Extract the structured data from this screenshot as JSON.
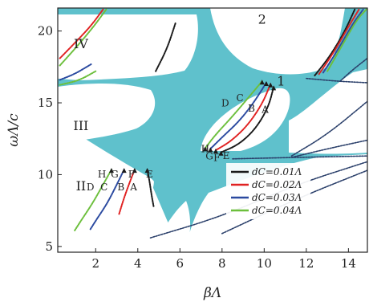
{
  "chart_data": {
    "type": "line",
    "title": "",
    "xlabel": "βΛ",
    "ylabel": "ωΛ/c",
    "xlim": [
      0.2,
      14.9
    ],
    "ylim": [
      4.6,
      21.6
    ],
    "xticks": [
      2,
      4,
      6,
      8,
      10,
      12,
      14
    ],
    "yticks": [
      5,
      10,
      15,
      20
    ],
    "colors": {
      "band": "#5fc1cc",
      "d1": "#1a1a1a",
      "d2": "#e02222",
      "d3": "#2b4aa0",
      "d4": "#6cbf3c",
      "light_line": "#2a3f6a"
    },
    "legend": {
      "placement": "lower-right",
      "entries": [
        {
          "text": "dC=0.01Λ",
          "color": "d1"
        },
        {
          "text": "dC=0.02Λ",
          "color": "d2"
        },
        {
          "text": "dC=0.03Λ",
          "color": "d3"
        },
        {
          "text": "dC=0.04Λ",
          "color": "d4"
        }
      ]
    },
    "region_labels": [
      {
        "text": "IV",
        "x": 1.3,
        "y": 18.8
      },
      {
        "text": "III",
        "x": 1.3,
        "y": 13.1
      },
      {
        "text": "II",
        "x": 1.3,
        "y": 8.9
      },
      {
        "text": "2",
        "x": 9.9,
        "y": 20.5
      },
      {
        "text": "1",
        "x": 10.8,
        "y": 16.2
      }
    ],
    "point_labels": [
      {
        "text": "H",
        "x": 2.3,
        "y": 9.8
      },
      {
        "text": "G",
        "x": 2.9,
        "y": 9.8
      },
      {
        "text": "F",
        "x": 3.7,
        "y": 9.8
      },
      {
        "text": "E",
        "x": 4.55,
        "y": 9.8
      },
      {
        "text": "D",
        "x": 1.75,
        "y": 8.9
      },
      {
        "text": "C",
        "x": 2.4,
        "y": 8.9
      },
      {
        "text": "B",
        "x": 3.2,
        "y": 8.9
      },
      {
        "text": "A",
        "x": 3.8,
        "y": 8.9
      },
      {
        "text": "D",
        "x": 8.15,
        "y": 14.75
      },
      {
        "text": "C",
        "x": 8.85,
        "y": 15.1
      },
      {
        "text": "B",
        "x": 9.4,
        "y": 14.4
      },
      {
        "text": "A",
        "x": 10.05,
        "y": 14.3
      },
      {
        "text": "H",
        "x": 7.2,
        "y": 11.55
      },
      {
        "text": "G",
        "x": 7.4,
        "y": 11.05
      },
      {
        "text": "F",
        "x": 7.75,
        "y": 10.95
      },
      {
        "text": "E",
        "x": 8.2,
        "y": 11.1
      }
    ],
    "series": [
      {
        "color": "d1",
        "points": [
          [
            4.45,
            10.35
          ],
          [
            4.55,
            9.6
          ],
          [
            4.65,
            8.6
          ],
          [
            4.75,
            7.8
          ]
        ]
      },
      {
        "color": "d2",
        "points": [
          [
            3.85,
            10.35
          ],
          [
            3.65,
            9.6
          ],
          [
            3.35,
            8.4
          ],
          [
            3.1,
            7.2
          ]
        ]
      },
      {
        "color": "d3",
        "points": [
          [
            3.35,
            10.35
          ],
          [
            3.0,
            9.3
          ],
          [
            2.55,
            8.0
          ],
          [
            2.05,
            6.9
          ],
          [
            1.75,
            6.2
          ]
        ]
      },
      {
        "color": "d4",
        "points": [
          [
            2.75,
            10.35
          ],
          [
            2.35,
            9.3
          ],
          [
            1.85,
            8.0
          ],
          [
            1.35,
            6.9
          ],
          [
            1.0,
            6.1
          ]
        ]
      },
      {
        "color": "d1",
        "points": [
          [
            10.45,
            16.1
          ],
          [
            10.2,
            14.7
          ],
          [
            9.6,
            13.2
          ],
          [
            8.8,
            12.1
          ],
          [
            7.95,
            11.55
          ]
        ]
      },
      {
        "color": "d2",
        "points": [
          [
            10.3,
            16.3
          ],
          [
            9.9,
            14.9
          ],
          [
            9.2,
            13.4
          ],
          [
            8.4,
            12.3
          ],
          [
            7.7,
            11.7
          ]
        ]
      },
      {
        "color": "d3",
        "points": [
          [
            10.1,
            16.4
          ],
          [
            9.5,
            15.0
          ],
          [
            8.8,
            13.7
          ],
          [
            8.0,
            12.6
          ],
          [
            7.45,
            11.8
          ]
        ]
      },
      {
        "color": "d4",
        "points": [
          [
            9.9,
            16.5
          ],
          [
            9.1,
            15.1
          ],
          [
            8.4,
            13.9
          ],
          [
            7.7,
            12.8
          ],
          [
            7.2,
            11.85
          ]
        ]
      },
      {
        "color": "d1",
        "points": [
          [
            4.85,
            17.2
          ],
          [
            5.4,
            18.8
          ],
          [
            5.8,
            20.6
          ]
        ]
      },
      {
        "color": "d2",
        "points": [
          [
            0.3,
            18.1
          ],
          [
            1.1,
            19.3
          ],
          [
            1.8,
            20.4
          ],
          [
            2.35,
            21.5
          ]
        ]
      },
      {
        "color": "d4",
        "points": [
          [
            0.3,
            17.6
          ],
          [
            1.1,
            18.9
          ],
          [
            1.9,
            20.3
          ],
          [
            2.5,
            21.5
          ]
        ]
      },
      {
        "color": "d1",
        "points": [
          [
            12.4,
            16.9
          ],
          [
            13.1,
            18.2
          ],
          [
            13.8,
            19.9
          ],
          [
            14.3,
            21.5
          ]
        ]
      },
      {
        "color": "d2",
        "points": [
          [
            12.6,
            17.0
          ],
          [
            13.3,
            18.5
          ],
          [
            14.0,
            20.3
          ],
          [
            14.5,
            21.5
          ]
        ]
      },
      {
        "color": "d3",
        "points": [
          [
            12.8,
            17.1
          ],
          [
            13.5,
            18.7
          ],
          [
            14.2,
            20.5
          ],
          [
            14.7,
            21.5
          ]
        ]
      },
      {
        "color": "d4",
        "points": [
          [
            13.0,
            17.2
          ],
          [
            13.7,
            19.0
          ],
          [
            14.4,
            20.8
          ],
          [
            14.85,
            21.5
          ]
        ]
      },
      {
        "color": "d3",
        "points": [
          [
            0.3,
            16.6
          ],
          [
            1.0,
            17.0
          ],
          [
            1.8,
            17.7
          ]
        ]
      },
      {
        "color": "d4",
        "points": [
          [
            0.3,
            16.25
          ],
          [
            1.2,
            16.55
          ],
          [
            2.0,
            17.2
          ]
        ]
      },
      {
        "color": "light_line",
        "points": [
          [
            4.6,
            5.6
          ],
          [
            8.0,
            7.1
          ],
          [
            11.5,
            9.3
          ],
          [
            14.9,
            10.9
          ]
        ]
      },
      {
        "color": "light_line",
        "points": [
          [
            8.0,
            5.9
          ],
          [
            11.5,
            8.3
          ],
          [
            14.9,
            10.3
          ]
        ]
      },
      {
        "color": "light_line",
        "points": [
          [
            8.5,
            11.1
          ],
          [
            11.5,
            11.2
          ],
          [
            14.9,
            11.3
          ]
        ]
      },
      {
        "color": "light_line",
        "points": [
          [
            11.3,
            11.3
          ],
          [
            13.0,
            12.8
          ],
          [
            14.9,
            15.1
          ]
        ]
      },
      {
        "color": "light_line",
        "points": [
          [
            11.3,
            11.2
          ],
          [
            13.0,
            11.8
          ],
          [
            14.9,
            12.4
          ]
        ]
      },
      {
        "color": "light_line",
        "points": [
          [
            12.0,
            16.7
          ],
          [
            13.5,
            16.5
          ],
          [
            14.9,
            16.4
          ]
        ]
      },
      {
        "color": "light_line",
        "points": [
          [
            13.6,
            16.5
          ],
          [
            14.2,
            17.3
          ],
          [
            14.9,
            18.1
          ]
        ]
      }
    ]
  }
}
